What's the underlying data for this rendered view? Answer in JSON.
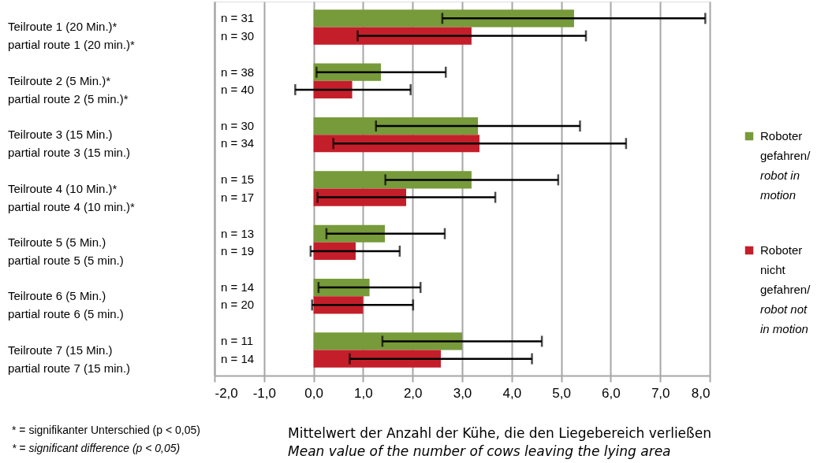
{
  "chart_data": {
    "type": "bar",
    "orientation": "horizontal",
    "categories": [
      "Teilroute 1 (20 Min.)*\npartial route 1 (20 min.)*",
      "Teilroute 2 (5 Min.)*\npartial route 2 (5 min.)*",
      "Teilroute 3 (15 Min.)\npartial route 3 (15 min.)",
      "Teilroute 4 (10 Min.)*\npartial route 4 (10 min.)*",
      "Teilroute 5 (5 Min.)\npartial route 5 (5 min.)",
      "Teilroute 6 (5 Min.)\npartial route 6 (5 min.)",
      "Teilroute 7 (15 Min.)\npartial route 7 (15 min.)"
    ],
    "series": [
      {
        "name": "Roboter\ngefahren/\nrobot in\nmotion",
        "color": "#779a3b",
        "values": [
          5.26,
          1.36,
          3.32,
          3.19,
          1.44,
          1.13,
          3.0
        ],
        "errors": [
          [
            2.6,
            7.91
          ],
          [
            0.06,
            2.67
          ],
          [
            1.26,
            5.38
          ],
          [
            1.45,
            4.94
          ],
          [
            0.26,
            2.65
          ],
          [
            0.1,
            2.16
          ],
          [
            1.39,
            4.61
          ]
        ]
      },
      {
        "name": "Roboter\nnicht\ngefahren/\nrobot not\nin motion",
        "color": "#c41e2a",
        "values": [
          3.19,
          0.78,
          3.35,
          1.87,
          0.85,
          1.0,
          2.57
        ],
        "errors": [
          [
            0.89,
            5.5
          ],
          [
            -0.37,
            1.96
          ],
          [
            0.4,
            6.31
          ],
          [
            0.08,
            3.67
          ],
          [
            -0.06,
            1.74
          ],
          [
            -0.03,
            2.01
          ],
          [
            0.73,
            4.41
          ]
        ]
      }
    ],
    "xlim": [
      -2,
      8
    ],
    "xticks": [
      {
        "value": -2,
        "label": "-2,0"
      },
      {
        "value": -1,
        "label": "-1,0"
      },
      {
        "value": 0,
        "label": "0,0"
      },
      {
        "value": 1,
        "label": "1,0"
      },
      {
        "value": 2,
        "label": "2,0"
      },
      {
        "value": 3,
        "label": "3,0"
      },
      {
        "value": 4,
        "label": "4,0"
      },
      {
        "value": 5,
        "label": "5,0"
      },
      {
        "value": 6,
        "label": "6,0"
      },
      {
        "value": 7,
        "label": "7,0"
      },
      {
        "value": 8,
        "label": "8,0"
      }
    ],
    "xlabel": "Mittelwert der Anzahl der Kühe, die den Liegebereich verließen\nMean value of the number of cows leaving the lying area",
    "grid": "x",
    "legend": "right",
    "annotations": [
      "n = 31",
      "n = 30",
      "n = 38",
      "n = 40",
      "n = 30",
      "n = 34",
      "n = 15",
      "n = 17",
      "n = 13",
      "n = 19",
      "n = 14",
      "n = 20",
      "n = 11",
      "n = 14",
      "* = signifikanter Unterschied (p < 0,05)\n* = significant difference (p < 0,05)"
    ]
  }
}
